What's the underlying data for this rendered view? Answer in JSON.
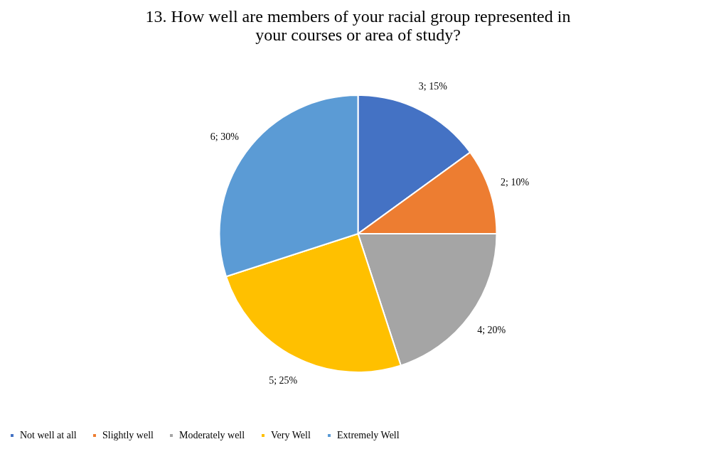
{
  "chart_data": {
    "type": "pie",
    "title": "13.  How well are members of your racial group represented in\nyour courses or area of study?",
    "categories": [
      "Not well at all",
      "Slightly well",
      "Moderately well",
      "Very Well",
      "Extremely Well"
    ],
    "values": [
      3,
      2,
      4,
      5,
      6
    ],
    "value_labels": [
      "3; 15%",
      "2; 10%",
      "4; 20%",
      "5; 25%",
      "6; 30%"
    ],
    "colors": [
      "#4472c4",
      "#ed7d31",
      "#a5a5a5",
      "#ffc000",
      "#5b9bd5"
    ],
    "legend": "bottom"
  }
}
